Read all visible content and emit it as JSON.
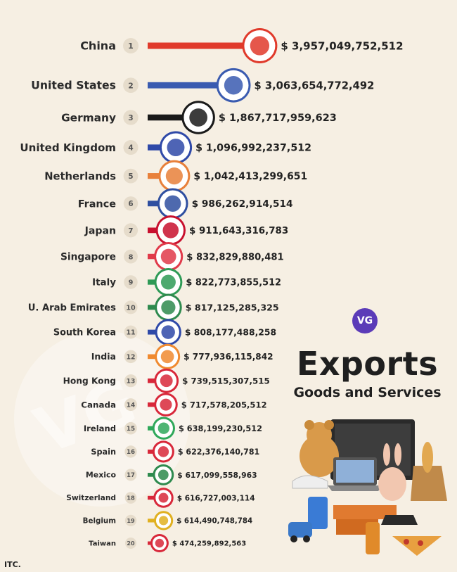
{
  "title": "Exports",
  "subtitle": "Goods and Services",
  "badge": "VG",
  "watermark": "VG",
  "source": "ITC.",
  "chart_data": {
    "type": "bar",
    "title": "Exports",
    "subtitle": "Goods and Services",
    "value_prefix": "$",
    "categories": [
      "China",
      "United States",
      "Germany",
      "United Kingdom",
      "Netherlands",
      "France",
      "Japan",
      "Singapore",
      "Italy",
      "U. Arab Emirates",
      "South Korea",
      "India",
      "Hong Kong",
      "Canada",
      "Ireland",
      "Spain",
      "Mexico",
      "Switzerland",
      "Belgium",
      "Taiwan"
    ],
    "ranks": [
      "1",
      "2",
      "3",
      "4",
      "5",
      "6",
      "7",
      "8",
      "9",
      "10",
      "11",
      "12",
      "13",
      "14",
      "15",
      "16",
      "17",
      "18",
      "19",
      "20"
    ],
    "values": [
      3957049752512,
      3063654772492,
      1867717959623,
      1096992237512,
      1042413299651,
      986262914514,
      911643316783,
      832829880481,
      822773855512,
      817125285325,
      808177488258,
      777936115842,
      739515307515,
      717578205512,
      638199230512,
      622376140781,
      617099558963,
      616727003114,
      614490748784,
      474259892563
    ],
    "value_labels": [
      "$ 3,957,049,752,512",
      "$ 3,063,654,772,492",
      "$ 1,867,717,959,623",
      "$ 1,096,992,237,512",
      "$ 1,042,413,299,651",
      "$ 986,262,914,514",
      "$ 911,643,316,783",
      "$ 832,829,880,481",
      "$ 822,773,855,512",
      "$ 817,125,285,325",
      "$ 808,177,488,258",
      "$ 777,936,115,842",
      "$ 739,515,307,515",
      "$ 717,578,205,512",
      "$ 638,199,230,512",
      "$ 622,376,140,781",
      "$ 617,099,558,963",
      "$ 616,727,003,114",
      "$ 614,490,748,784",
      "$ 474,259,892,563"
    ],
    "bar_colors": [
      "#e03a2b",
      "#3a5bb0",
      "#1a1a1a",
      "#2f49a8",
      "#e8803a",
      "#2f4fa0",
      "#c8102e",
      "#e03a4a",
      "#2e9a56",
      "#2e8a4e",
      "#2f49a8",
      "#f08a30",
      "#d8283a",
      "#d8283a",
      "#2fa85a",
      "#d8283a",
      "#2e8a4e",
      "#d8283a",
      "#e0b020",
      "#d8283a"
    ]
  }
}
